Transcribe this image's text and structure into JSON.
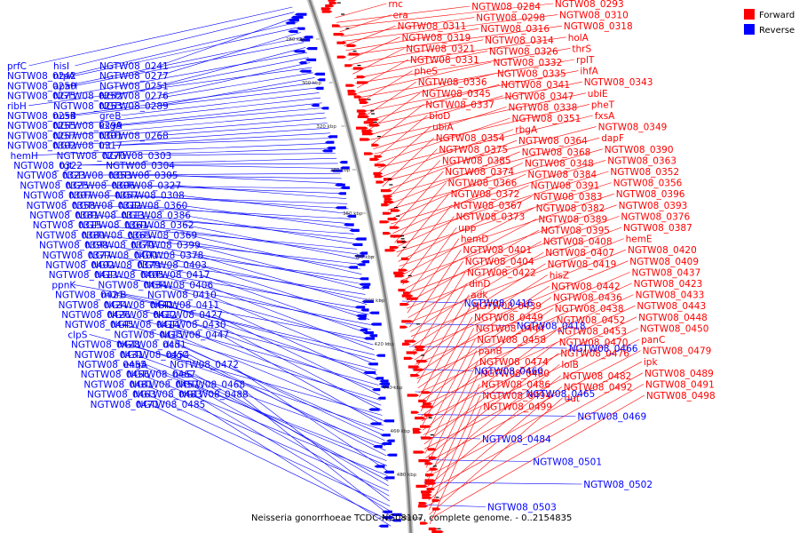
{
  "caption": "Neisseria gonorrhoeae TCDC-NG08107, complete genome. - 0..2154835",
  "legend": [
    {
      "label": "Forward",
      "color": "#ff0000"
    },
    {
      "label": "Reverse",
      "color": "#0000ff"
    }
  ],
  "colors": {
    "forward": "#ff0000",
    "reverse": "#0000ff",
    "backbone": "#7f7f7f"
  },
  "ticks": [
    "280 kbp",
    "300 kbp",
    "320 kbp",
    "340 kbp",
    "360 kbp",
    "380 kbp",
    "400 kbp",
    "420 kbp",
    "440 kbp",
    "460 kbp",
    "480 kbp",
    "500 kbp"
  ],
  "forward_labels": [
    "rnc",
    "NGTW08_0284",
    "NGTW08_0293",
    "era",
    "NGTW08_0298",
    "NGTW08_0310",
    "NGTW08_0311",
    "NGTW08_0316",
    "NGTW08_0318",
    "NGTW08_0319",
    "NGTW08_0314",
    "holA",
    "NGTW08_0321",
    "NGTW08_0326",
    "thrS",
    "NGTW08_0331",
    "NGTW08_0332",
    "rplT",
    "pheS",
    "NGTW08_0335",
    "ihfA",
    "NGTW08_0336",
    "NGTW08_0341",
    "NGTW08_0343",
    "NGTW08_0345",
    "NGTW08_0347",
    "ubiE",
    "NGTW08_0337",
    "NGTW08_0338",
    "pheT",
    "bioD",
    "NGTW08_0351",
    "fxsA",
    "ubiA",
    "rbgA",
    "NGTW08_0349",
    "NGTW08_0354",
    "NGTW08_0364",
    "dapF",
    "NGTW08_0375",
    "NGTW08_0368",
    "NGTW08_0390",
    "NGTW08_0385",
    "NGTW08_0348",
    "NGTW08_0363",
    "NGTW08_0374",
    "NGTW08_0384",
    "NGTW08_0352",
    "NGTW08_0366",
    "NGTW08_0391",
    "NGTW08_0356",
    "NGTW08_0372",
    "NGTW08_0383",
    "NGTW08_0396",
    "NGTW08_0367",
    "NGTW08_0382",
    "NGTW08_0393",
    "NGTW08_0373",
    "NGTW08_0389",
    "NGTW08_0376",
    "upp",
    "NGTW08_0395",
    "NGTW08_0387",
    "hemD",
    "NGTW08_0408",
    "hemE",
    "NGTW08_0401",
    "NGTW08_0407",
    "NGTW08_0420",
    "NGTW08_0404",
    "NGTW08_0419",
    "NGTW08_0409",
    "NGTW08_0422",
    "hisZ",
    "NGTW08_0437",
    "dinD",
    "NGTW08_0442",
    "NGTW08_0423",
    "adk",
    "NGTW08_0436",
    "NGTW08_0433",
    "NGTW08_0439",
    "NGTW08_0438",
    "NGTW08_0443",
    "NGTW08_0449",
    "NGTW08_0452",
    "NGTW08_0448",
    "NGTW08_0444",
    "NGTW08_0453",
    "NGTW08_0450",
    "NGTW08_0458",
    "NGTW08_0470",
    "panC",
    "panB",
    "NGTW08_0476",
    "NGTW08_0479",
    "NGTW08_0474",
    "lolB",
    "ipk",
    "NGTW08_0480",
    "NGTW08_0482",
    "NGTW08_0489",
    "NGTW08_0486",
    "NGTW08_0492",
    "NGTW08_0491",
    "NGTW08_0494",
    "dut",
    "NGTW08_0498",
    "NGTW08_0499"
  ],
  "reverse_labels": [
    "prfC",
    "hisI",
    "NGTW08_0241",
    "NGTW08_0242",
    "ntpA",
    "NGTW08_0277",
    "NGTW08_0250",
    "apaH",
    "NGTW08_0251",
    "NGTW08_0275",
    "NGTW08_0252",
    "NGTW08_0276",
    "ribH",
    "NGTW08_0253",
    "NGTW08_0289",
    "NGTW08_0254",
    "nusB",
    "greB",
    "NGTW08_0255",
    "NGTW08_0299",
    "ksgA",
    "NGTW08_0257",
    "NGTW08_0301",
    "NGTW08_0268",
    "NGTW08_0302",
    "NGTW08_0317",
    "lnt",
    "hemH",
    "NGTW08_0270",
    "NGTW08_0303",
    "NGTW08_0322",
    "tgt",
    "NGTW08_0304",
    "NGTW08_0323",
    "NGTW08_0353",
    "NGTW08_0305",
    "NGTW08_0325",
    "NGTW08_0306",
    "NGTW08_0327",
    "NGTW08_0307",
    "NGTW08_0357",
    "NGTW08_0308",
    "NGTW08_0358",
    "NGTW08_0312",
    "NGTW08_0360",
    "NGTW08_0381",
    "NGTW08_0313",
    "NGTW08_0386",
    "NGTW08_0315",
    "NGTW08_0361",
    "NGTW08_0362",
    "NGTW08_0380",
    "NGTW08_0365",
    "NGTW08_0369",
    "NGTW08_0398",
    "NGTW08_0370",
    "NGTW08_0399",
    "NGTW08_0377",
    "NGTW08_0400",
    "NGTW08_0378",
    "NGTW08_0402",
    "NGTW08_0379",
    "NGTW08_0403",
    "NGTW08_0413",
    "NGTW08_0405",
    "NGTW08_0417",
    "ppnK",
    "NGTW08_0434",
    "NGTW08_0406",
    "NGTW08_0421",
    "murB",
    "NGTW08_0410",
    "NGTW08_0424",
    "NGTW08_0441",
    "NGTW08_0411",
    "NGTW08_0426",
    "NGTW08_0412",
    "NGTW08_0427",
    "NGTW08_0445",
    "NGTW08_0414",
    "NGTW08_0430",
    "clpS",
    "NGTW08_0415",
    "NGTW08_0447",
    "NGTW08_0428",
    "NGTW08_0451",
    "dcd",
    "NGTW08_0431",
    "NGTW08_0454",
    "rdgC",
    "NGTW08_0455",
    "engA",
    "NGTW08_0472",
    "NGTW08_0456",
    "NGTW08_0467",
    "hisS",
    "NGTW08_0481",
    "NGTW08_0457",
    "NGTW08_0468",
    "NGTW08_0463",
    "NGTW08_0483",
    "NGTW08_0488",
    "NGTW08_0471",
    "NGTW08_0485",
    "NGTW08_0416",
    "NGTW08_0418",
    "NGTW08_0466",
    "NGTW08_0460",
    "NGTW08_0465",
    "NGTW08_0469",
    "NGTW08_0484",
    "NGTW08_0501",
    "NGTW08_0502",
    "NGTW08_0503"
  ]
}
